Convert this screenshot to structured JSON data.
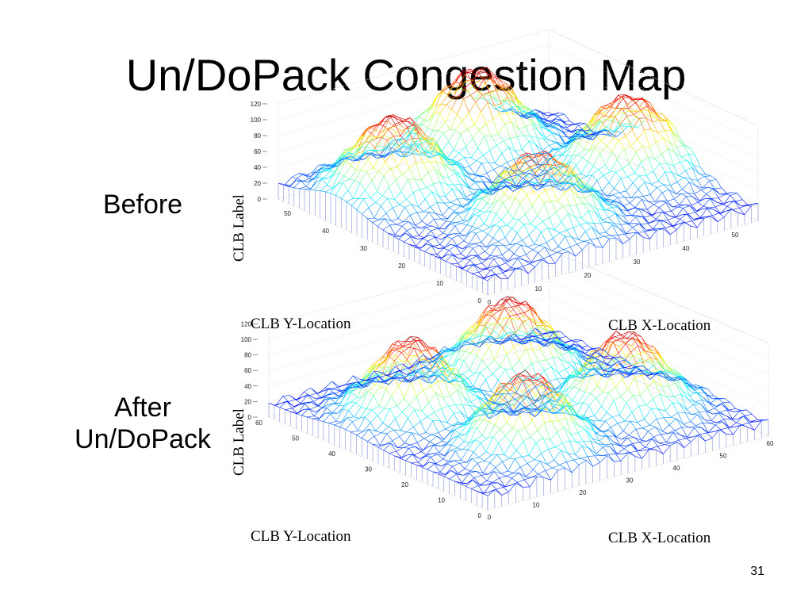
{
  "slide": {
    "title": "Un/DoPack Congestion Map",
    "page_number": "31"
  },
  "chart_data": [
    {
      "type": "surface3d",
      "row_label": "Before",
      "zlabel": "CLB Label",
      "ylabel": "CLB Y-Location",
      "xlabel": "CLB X-Location",
      "z_ticks": [
        "0",
        "20",
        "40",
        "60",
        "80",
        "100",
        "120"
      ],
      "y_ticks": [
        "0",
        "10",
        "20",
        "30",
        "40",
        "50"
      ],
      "x_ticks": [
        "0",
        "10",
        "20",
        "30",
        "40",
        "50"
      ],
      "zlim": [
        0,
        120
      ],
      "xlim": [
        0,
        55
      ],
      "ylim": [
        0,
        55
      ],
      "grid": true,
      "colormap": "jet",
      "peaks": [
        {
          "x": 12,
          "y": 40,
          "height": 115
        },
        {
          "x": 35,
          "y": 48,
          "height": 118
        },
        {
          "x": 48,
          "y": 25,
          "height": 112
        },
        {
          "x": 22,
          "y": 15,
          "height": 105
        }
      ]
    },
    {
      "type": "surface3d",
      "row_label": "After Un/DoPack",
      "zlabel": "CLB Label",
      "ylabel": "CLB Y-Location",
      "xlabel": "CLB X-Location",
      "z_ticks": [
        "0",
        "20",
        "40",
        "60",
        "80",
        "100",
        "120"
      ],
      "y_ticks": [
        "0",
        "10",
        "20",
        "30",
        "40",
        "50",
        "60"
      ],
      "x_ticks": [
        "0",
        "10",
        "20",
        "30",
        "40",
        "50",
        "60"
      ],
      "zlim": [
        0,
        120
      ],
      "xlim": [
        0,
        60
      ],
      "ylim": [
        0,
        60
      ],
      "grid": true,
      "colormap": "jet",
      "peaks": [
        {
          "x": 15,
          "y": 40,
          "height": 115
        },
        {
          "x": 40,
          "y": 45,
          "height": 118
        },
        {
          "x": 45,
          "y": 20,
          "height": 115
        },
        {
          "x": 20,
          "y": 15,
          "height": 112
        }
      ]
    }
  ]
}
